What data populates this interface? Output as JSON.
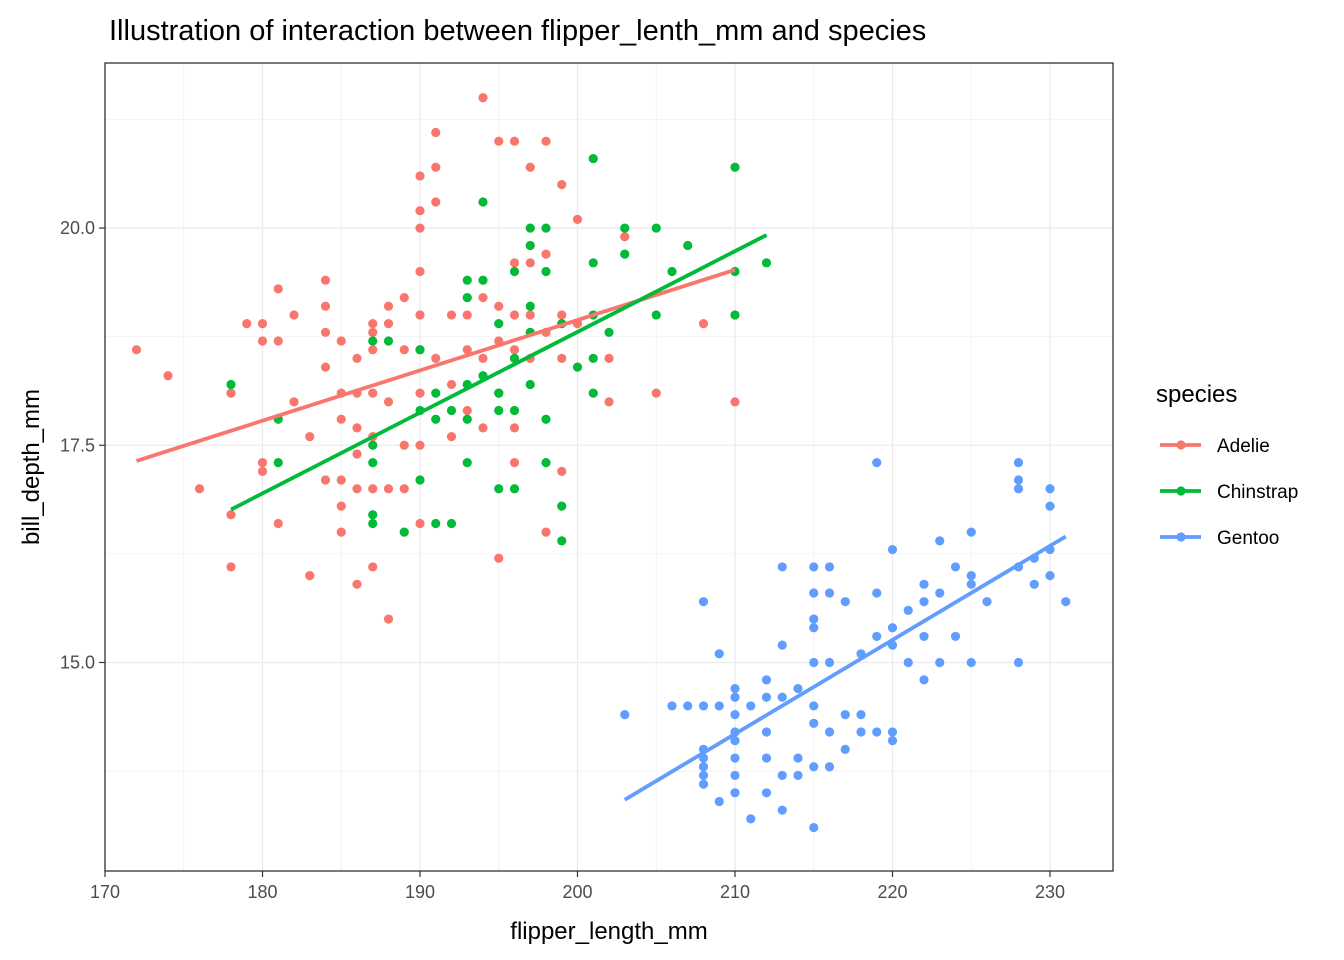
{
  "chart_data": {
    "type": "scatter",
    "title": "Illustration of interaction between flipper_lenth_mm and species",
    "xlabel": "flipper_length_mm",
    "ylabel": "bill_depth_mm",
    "xlim": [
      170,
      234
    ],
    "ylim": [
      12.6,
      21.9
    ],
    "x_ticks": [
      170,
      180,
      190,
      200,
      210,
      220,
      230
    ],
    "x_tick_labels": [
      "170",
      "180",
      "190",
      "200",
      "210",
      "220",
      "230"
    ],
    "y_ticks": [
      15.0,
      17.5,
      20.0
    ],
    "y_tick_labels": [
      "15.0",
      "17.5",
      "20.0"
    ],
    "grid": true,
    "legend": {
      "title": "species",
      "position": "right"
    },
    "series": [
      {
        "name": "Adelie",
        "color": "#F8766D",
        "trend": {
          "x": [
            172,
            210
          ],
          "y": [
            17.32,
            19.52
          ]
        },
        "points": [
          [
            172,
            18.6
          ],
          [
            174,
            18.3
          ],
          [
            176,
            17.0
          ],
          [
            178,
            18.1
          ],
          [
            178,
            16.7
          ],
          [
            178,
            16.1
          ],
          [
            179,
            18.9
          ],
          [
            180,
            18.9
          ],
          [
            180,
            18.7
          ],
          [
            180,
            17.3
          ],
          [
            180,
            17.2
          ],
          [
            181,
            19.3
          ],
          [
            181,
            18.7
          ],
          [
            181,
            16.6
          ],
          [
            182,
            19.0
          ],
          [
            182,
            18.0
          ],
          [
            183,
            17.6
          ],
          [
            183,
            16.0
          ],
          [
            184,
            19.4
          ],
          [
            184,
            19.1
          ],
          [
            184,
            18.8
          ],
          [
            184,
            18.4
          ],
          [
            184,
            17.1
          ],
          [
            185,
            18.7
          ],
          [
            185,
            18.1
          ],
          [
            185,
            17.8
          ],
          [
            185,
            17.1
          ],
          [
            185,
            16.8
          ],
          [
            185,
            16.5
          ],
          [
            186,
            18.5
          ],
          [
            186,
            18.1
          ],
          [
            186,
            17.7
          ],
          [
            186,
            17.4
          ],
          [
            186,
            17.0
          ],
          [
            186,
            15.9
          ],
          [
            187,
            18.9
          ],
          [
            187,
            18.8
          ],
          [
            187,
            18.6
          ],
          [
            187,
            18.1
          ],
          [
            187,
            17.6
          ],
          [
            187,
            17.0
          ],
          [
            187,
            16.1
          ],
          [
            188,
            19.1
          ],
          [
            188,
            18.9
          ],
          [
            188,
            18.0
          ],
          [
            188,
            17.0
          ],
          [
            188,
            15.5
          ],
          [
            189,
            19.2
          ],
          [
            189,
            18.6
          ],
          [
            189,
            17.5
          ],
          [
            189,
            17.0
          ],
          [
            190,
            20.6
          ],
          [
            190,
            20.2
          ],
          [
            190,
            20.0
          ],
          [
            190,
            19.5
          ],
          [
            190,
            19.0
          ],
          [
            190,
            18.6
          ],
          [
            190,
            18.1
          ],
          [
            190,
            17.5
          ],
          [
            190,
            16.6
          ],
          [
            191,
            21.1
          ],
          [
            191,
            20.7
          ],
          [
            191,
            20.3
          ],
          [
            191,
            18.5
          ],
          [
            192,
            19.0
          ],
          [
            192,
            18.2
          ],
          [
            192,
            17.6
          ],
          [
            193,
            19.0
          ],
          [
            193,
            18.6
          ],
          [
            193,
            17.9
          ],
          [
            194,
            21.5
          ],
          [
            194,
            19.2
          ],
          [
            194,
            18.5
          ],
          [
            194,
            17.7
          ],
          [
            195,
            21.0
          ],
          [
            195,
            19.1
          ],
          [
            195,
            18.7
          ],
          [
            195,
            18.1
          ],
          [
            195,
            16.2
          ],
          [
            196,
            21.0
          ],
          [
            196,
            19.6
          ],
          [
            196,
            19.0
          ],
          [
            196,
            18.6
          ],
          [
            196,
            17.7
          ],
          [
            196,
            17.3
          ],
          [
            197,
            20.7
          ],
          [
            197,
            19.6
          ],
          [
            197,
            19.0
          ],
          [
            197,
            18.5
          ],
          [
            198,
            21.0
          ],
          [
            198,
            19.7
          ],
          [
            198,
            18.8
          ],
          [
            198,
            16.5
          ],
          [
            199,
            20.5
          ],
          [
            199,
            19.0
          ],
          [
            199,
            18.5
          ],
          [
            199,
            17.2
          ],
          [
            200,
            20.1
          ],
          [
            200,
            18.9
          ],
          [
            202,
            18.5
          ],
          [
            202,
            18.0
          ],
          [
            203,
            19.9
          ],
          [
            205,
            18.1
          ],
          [
            208,
            18.9
          ],
          [
            210,
            18.0
          ]
        ]
      },
      {
        "name": "Chinstrap",
        "color": "#00BA38",
        "trend": {
          "x": [
            178,
            212
          ],
          "y": [
            16.76,
            19.92
          ]
        },
        "points": [
          [
            178,
            18.2
          ],
          [
            181,
            17.8
          ],
          [
            181,
            17.3
          ],
          [
            187,
            18.7
          ],
          [
            187,
            17.5
          ],
          [
            187,
            17.3
          ],
          [
            187,
            16.7
          ],
          [
            187,
            16.6
          ],
          [
            188,
            18.7
          ],
          [
            189,
            16.5
          ],
          [
            190,
            18.6
          ],
          [
            190,
            17.9
          ],
          [
            190,
            17.1
          ],
          [
            191,
            18.1
          ],
          [
            191,
            17.8
          ],
          [
            191,
            16.6
          ],
          [
            192,
            17.9
          ],
          [
            192,
            16.6
          ],
          [
            193,
            19.4
          ],
          [
            193,
            19.2
          ],
          [
            193,
            18.2
          ],
          [
            193,
            17.8
          ],
          [
            193,
            17.3
          ],
          [
            194,
            20.3
          ],
          [
            194,
            19.4
          ],
          [
            194,
            18.3
          ],
          [
            195,
            18.9
          ],
          [
            195,
            18.1
          ],
          [
            195,
            17.9
          ],
          [
            195,
            17.0
          ],
          [
            196,
            19.5
          ],
          [
            196,
            18.5
          ],
          [
            196,
            17.9
          ],
          [
            196,
            17.0
          ],
          [
            197,
            20.0
          ],
          [
            197,
            19.8
          ],
          [
            197,
            19.1
          ],
          [
            197,
            18.8
          ],
          [
            197,
            18.2
          ],
          [
            198,
            20.0
          ],
          [
            198,
            19.5
          ],
          [
            198,
            17.8
          ],
          [
            198,
            17.3
          ],
          [
            199,
            18.9
          ],
          [
            199,
            16.8
          ],
          [
            199,
            16.4
          ],
          [
            200,
            18.4
          ],
          [
            201,
            20.8
          ],
          [
            201,
            19.6
          ],
          [
            201,
            19.0
          ],
          [
            201,
            18.5
          ],
          [
            201,
            18.1
          ],
          [
            202,
            18.8
          ],
          [
            203,
            20.0
          ],
          [
            203,
            19.7
          ],
          [
            205,
            20.0
          ],
          [
            205,
            19.0
          ],
          [
            206,
            19.5
          ],
          [
            207,
            19.8
          ],
          [
            210,
            20.7
          ],
          [
            210,
            19.5
          ],
          [
            210,
            19.0
          ],
          [
            212,
            19.6
          ]
        ]
      },
      {
        "name": "Gentoo",
        "color": "#619CFF",
        "trend": {
          "x": [
            203,
            231
          ],
          "y": [
            13.42,
            16.45
          ]
        },
        "points": [
          [
            203,
            14.4
          ],
          [
            206,
            14.5
          ],
          [
            207,
            14.5
          ],
          [
            208,
            15.7
          ],
          [
            208,
            14.5
          ],
          [
            208,
            14.0
          ],
          [
            208,
            13.9
          ],
          [
            208,
            13.8
          ],
          [
            208,
            13.7
          ],
          [
            208,
            13.6
          ],
          [
            209,
            15.1
          ],
          [
            209,
            14.5
          ],
          [
            209,
            13.4
          ],
          [
            210,
            14.7
          ],
          [
            210,
            14.6
          ],
          [
            210,
            14.4
          ],
          [
            210,
            14.2
          ],
          [
            210,
            14.1
          ],
          [
            210,
            13.9
          ],
          [
            210,
            13.7
          ],
          [
            210,
            13.5
          ],
          [
            211,
            14.5
          ],
          [
            211,
            13.2
          ],
          [
            212,
            14.8
          ],
          [
            212,
            14.6
          ],
          [
            212,
            14.2
          ],
          [
            212,
            13.9
          ],
          [
            212,
            13.5
          ],
          [
            213,
            16.1
          ],
          [
            213,
            15.2
          ],
          [
            213,
            14.6
          ],
          [
            213,
            13.3
          ],
          [
            213,
            13.7
          ],
          [
            214,
            14.7
          ],
          [
            214,
            13.9
          ],
          [
            214,
            13.7
          ],
          [
            215,
            16.1
          ],
          [
            215,
            15.8
          ],
          [
            215,
            15.5
          ],
          [
            215,
            15.4
          ],
          [
            215,
            15.0
          ],
          [
            215,
            14.5
          ],
          [
            215,
            14.3
          ],
          [
            215,
            13.8
          ],
          [
            215,
            13.1
          ],
          [
            216,
            16.1
          ],
          [
            216,
            15.8
          ],
          [
            216,
            15.0
          ],
          [
            216,
            14.2
          ],
          [
            216,
            13.8
          ],
          [
            217,
            15.7
          ],
          [
            217,
            14.4
          ],
          [
            217,
            14.0
          ],
          [
            218,
            15.1
          ],
          [
            218,
            14.4
          ],
          [
            218,
            14.2
          ],
          [
            219,
            17.3
          ],
          [
            219,
            15.8
          ],
          [
            219,
            15.3
          ],
          [
            219,
            14.2
          ],
          [
            220,
            16.3
          ],
          [
            220,
            15.4
          ],
          [
            220,
            15.2
          ],
          [
            220,
            14.2
          ],
          [
            220,
            14.1
          ],
          [
            221,
            15.6
          ],
          [
            221,
            15.0
          ],
          [
            222,
            15.9
          ],
          [
            222,
            15.7
          ],
          [
            222,
            15.3
          ],
          [
            222,
            14.8
          ],
          [
            223,
            16.4
          ],
          [
            223,
            15.8
          ],
          [
            223,
            15.0
          ],
          [
            224,
            16.1
          ],
          [
            224,
            15.3
          ],
          [
            225,
            16.5
          ],
          [
            225,
            16.0
          ],
          [
            225,
            15.9
          ],
          [
            225,
            15.0
          ],
          [
            226,
            15.7
          ],
          [
            228,
            17.3
          ],
          [
            228,
            17.1
          ],
          [
            228,
            17.0
          ],
          [
            228,
            16.1
          ],
          [
            228,
            15.0
          ],
          [
            229,
            15.9
          ],
          [
            229,
            16.2
          ],
          [
            230,
            17.0
          ],
          [
            230,
            16.8
          ],
          [
            230,
            16.3
          ],
          [
            230,
            16.0
          ],
          [
            231,
            15.7
          ]
        ]
      }
    ]
  }
}
